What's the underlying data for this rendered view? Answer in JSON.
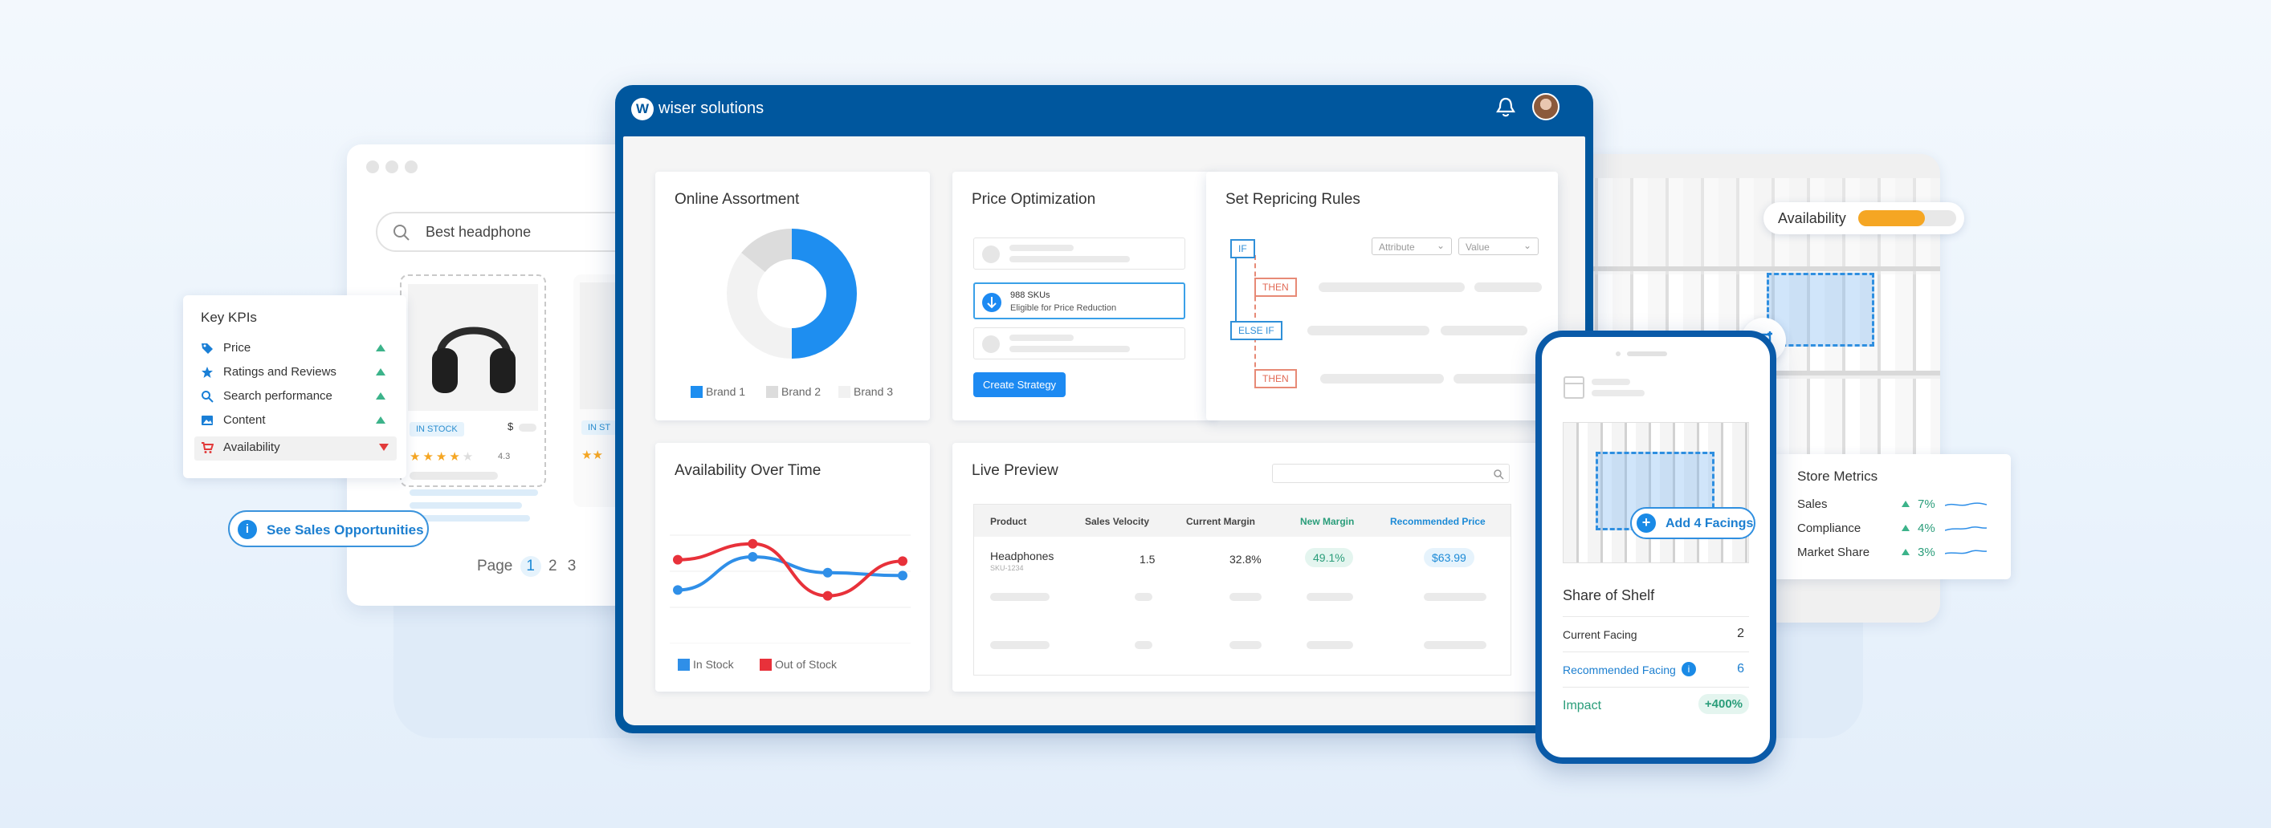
{
  "browser": {
    "search": {
      "placeholder": "Best headphone"
    },
    "product": {
      "badge": "IN STOCK",
      "price_symbol": "$",
      "rating": "4.3",
      "badge2": "IN ST"
    },
    "pagination": {
      "label": "Page",
      "pages": [
        "1",
        "2",
        "3"
      ],
      "current": "1"
    }
  },
  "kpi": {
    "title": "Key KPIs",
    "items": [
      {
        "label": "Price",
        "icon": "tag-icon",
        "trend": "up"
      },
      {
        "label": "Ratings and Reviews",
        "icon": "star-icon",
        "trend": "up"
      },
      {
        "label": "Search performance",
        "icon": "search-icon",
        "trend": "up"
      },
      {
        "label": "Content",
        "icon": "image-icon",
        "trend": "up"
      },
      {
        "label": "Availability",
        "icon": "cart-icon",
        "trend": "down"
      }
    ]
  },
  "sales_button": {
    "label": "See Sales Opportunities"
  },
  "app": {
    "logo_text": "wiser solutions",
    "logo_letter": "W"
  },
  "online_assortment": {
    "title": "Online Assortment",
    "legend": [
      "Brand 1",
      "Brand 2",
      "Brand 3"
    ]
  },
  "price_optimization": {
    "title": "Price Optimization",
    "sku_count": "988 SKUs",
    "sku_note": "Eligible for Price Reduction",
    "button": "Create Strategy"
  },
  "repricing": {
    "title": "Set Repricing Rules",
    "if": "IF",
    "then": "THEN",
    "else_if": "ELSE IF",
    "then2": "THEN",
    "attribute_placeholder": "Attribute",
    "value_placeholder": "Value"
  },
  "availability_chart": {
    "title": "Availability Over Time",
    "legend": [
      "In Stock",
      "Out of Stock"
    ]
  },
  "chart_data": {
    "type": "line",
    "title": "Availability Over Time",
    "x": [
      1,
      2,
      3,
      4
    ],
    "series": [
      {
        "name": "In Stock",
        "values": [
          37,
          60,
          49,
          47
        ],
        "color": "#2f8fe8"
      },
      {
        "name": "Out of Stock",
        "values": [
          58,
          69,
          33,
          57
        ],
        "color": "#e8313a"
      }
    ],
    "ylim": [
      0,
      100
    ],
    "grid": true,
    "legend_position": "bottom"
  },
  "live_preview": {
    "title": "Live Preview",
    "columns": [
      "Product",
      "Sales Velocity",
      "Current Margin",
      "New Margin",
      "Recommended Price"
    ],
    "row": {
      "product": "Headphones",
      "sku": "SKU-1234",
      "velocity": "1.5",
      "current_margin": "32.8%",
      "new_margin": "49.1%",
      "price": "$63.99"
    }
  },
  "availability_widget": {
    "label": "Availability",
    "level": 0.68,
    "color": "#f5a623"
  },
  "store_metrics": {
    "title": "Store Metrics",
    "rows": [
      {
        "label": "Sales",
        "value": "7%"
      },
      {
        "label": "Compliance",
        "value": "4%"
      },
      {
        "label": "Market Share",
        "value": "3%"
      }
    ]
  },
  "phone": {
    "add_facings": "Add 4 Facings",
    "title": "Share of Shelf",
    "current_label": "Current Facing",
    "current_value": "2",
    "recommended_label": "Recommended Facing",
    "recommended_value": "6",
    "impact_label": "Impact",
    "impact_value": "+400%"
  },
  "colors": {
    "brand": "#00579e",
    "accent": "#1d8af2",
    "positive": "#3cb38a",
    "negative": "#e23b3b"
  }
}
